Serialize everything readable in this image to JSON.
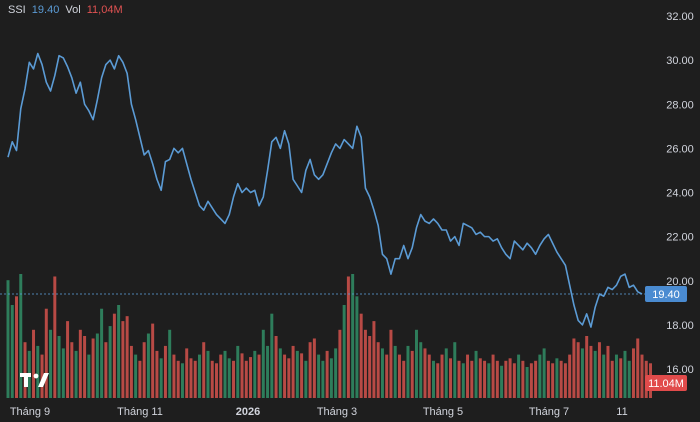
{
  "legend": {
    "symbol": "SSI",
    "price": "19.40",
    "volume_label": "Vol",
    "volume": "11,04M"
  },
  "badges": {
    "price": "19.40",
    "volume": "11.04M"
  },
  "colors": {
    "background": "#1e1e1e",
    "line": "#5b9bd5",
    "vol_up": "#2e7d5b",
    "vol_down": "#b84a45",
    "badge_price": "#4a8bd1",
    "badge_vol": "#e14b4b",
    "text": "#d1d4dc"
  },
  "logo_icon": "tradingview-logo-icon",
  "chart_data": {
    "type": "line",
    "title": "",
    "xlabel": "",
    "ylabel": "",
    "y_ticks": [
      "32.00",
      "30.00",
      "28.00",
      "26.00",
      "24.00",
      "22.00",
      "20.00",
      "18.00",
      "16.00"
    ],
    "ylim": [
      14.9,
      32.5
    ],
    "x_ticks": [
      "Tháng 9",
      "Tháng 11",
      "2026",
      "Tháng 3",
      "Tháng 5",
      "Tháng 7",
      "11"
    ],
    "x_ticks_bold": [
      false,
      false,
      true,
      false,
      false,
      false,
      false
    ],
    "grid": false,
    "current_price": 19.4,
    "series": [
      {
        "values": [
          25.6,
          26.3,
          25.9,
          27.8,
          28.7,
          29.9,
          29.6,
          30.3,
          29.8,
          29.0,
          28.6,
          29.3,
          30.2,
          30.1,
          29.7,
          29.2,
          28.5,
          29.0,
          28.0,
          27.7,
          27.3,
          28.2,
          29.2,
          29.8,
          30.0,
          29.6,
          30.2,
          29.9,
          29.4,
          28.0,
          27.3,
          26.5,
          25.7,
          25.9,
          25.3,
          24.6,
          24.1,
          25.4,
          25.5,
          26.0,
          25.8,
          26.0,
          25.3,
          24.6,
          24.0,
          23.4,
          23.2,
          23.6,
          23.3,
          23.0,
          22.8,
          22.6,
          23.0,
          23.8,
          24.4,
          24.0,
          24.2,
          24.0,
          24.1,
          23.4,
          23.8,
          25.0,
          26.3,
          26.5,
          26.0,
          26.8,
          26.2,
          24.6,
          24.3,
          24.0,
          25.0,
          25.5,
          24.8,
          24.6,
          24.8,
          25.3,
          25.8,
          26.2,
          26.0,
          26.4,
          26.2,
          26.0,
          27.0,
          26.5,
          24.2,
          23.8,
          23.2,
          22.5,
          21.2,
          21.0,
          20.3,
          21.0,
          21.0,
          21.6,
          21.0,
          21.5,
          22.4,
          23.0,
          22.7,
          22.6,
          22.8,
          22.6,
          22.3,
          22.3,
          21.8,
          22.0,
          21.6,
          22.6,
          22.5,
          22.4,
          22.1,
          22.2,
          22.0,
          22.0,
          21.8,
          21.9,
          21.5,
          21.2,
          21.0,
          21.8,
          21.6,
          21.4,
          21.7,
          21.5,
          21.2,
          21.6,
          21.9,
          22.1,
          21.7,
          21.3,
          21.0,
          20.7,
          19.8,
          18.9,
          18.2,
          18.0,
          18.5,
          17.9,
          18.8,
          19.4,
          19.3,
          19.7,
          19.6,
          19.8,
          20.2,
          20.3,
          19.7,
          19.8,
          19.5,
          19.4
        ],
        "volume_up": [
          true,
          true,
          false,
          true,
          false,
          true,
          false,
          true,
          false,
          false,
          true,
          false,
          true,
          true,
          false,
          false,
          true,
          false,
          false,
          true,
          false,
          true,
          true,
          false,
          true,
          false,
          true,
          false,
          false,
          false,
          true,
          false,
          false,
          true,
          false,
          false,
          true,
          false,
          true,
          false,
          false,
          true,
          false,
          false,
          false,
          true,
          false,
          true,
          false,
          false,
          false,
          true,
          true,
          false,
          true,
          false,
          false,
          false,
          true,
          false,
          true,
          true,
          true,
          false,
          true,
          false,
          false,
          false,
          true,
          false,
          true,
          false,
          false,
          true,
          true,
          false,
          true,
          true,
          false,
          true,
          false,
          true,
          true,
          false,
          false,
          false,
          false,
          false,
          true,
          false,
          false,
          true,
          false,
          false,
          true,
          false,
          true,
          true,
          false,
          false,
          true,
          false,
          false,
          true,
          false,
          true,
          false,
          true,
          false,
          false,
          true,
          false,
          false,
          true,
          false,
          false,
          true,
          false,
          false,
          false,
          true,
          false,
          true,
          false,
          false,
          true,
          true,
          false,
          false,
          true,
          false,
          false,
          false,
          false,
          false,
          true,
          false,
          false,
          true,
          false,
          true,
          false,
          false,
          true,
          false,
          true,
          true,
          false,
          false,
          false,
          false,
          false
        ],
        "volume_levels": [
          0.95,
          0.75,
          0.82,
          1.0,
          0.45,
          0.38,
          0.55,
          0.42,
          0.35,
          0.72,
          0.55,
          0.98,
          0.5,
          0.4,
          0.62,
          0.45,
          0.38,
          0.55,
          0.5,
          0.35,
          0.48,
          0.52,
          0.72,
          0.45,
          0.58,
          0.68,
          0.75,
          0.62,
          0.66,
          0.42,
          0.35,
          0.3,
          0.45,
          0.52,
          0.6,
          0.38,
          0.32,
          0.42,
          0.55,
          0.35,
          0.3,
          0.28,
          0.4,
          0.32,
          0.3,
          0.35,
          0.45,
          0.38,
          0.3,
          0.28,
          0.35,
          0.38,
          0.32,
          0.3,
          0.42,
          0.36,
          0.3,
          0.33,
          0.38,
          0.35,
          0.55,
          0.42,
          0.68,
          0.5,
          0.4,
          0.35,
          0.32,
          0.42,
          0.38,
          0.36,
          0.3,
          0.45,
          0.48,
          0.35,
          0.3,
          0.38,
          0.32,
          0.4,
          0.55,
          0.75,
          0.98,
          1.0,
          0.82,
          0.68,
          0.55,
          0.5,
          0.62,
          0.45,
          0.4,
          0.35,
          0.55,
          0.42,
          0.35,
          0.3,
          0.42,
          0.38,
          0.55,
          0.45,
          0.4,
          0.35,
          0.3,
          0.28,
          0.35,
          0.4,
          0.32,
          0.45,
          0.3,
          0.28,
          0.35,
          0.3,
          0.38,
          0.32,
          0.3,
          0.28,
          0.35,
          0.3,
          0.26,
          0.3,
          0.32,
          0.28,
          0.35,
          0.3,
          0.25,
          0.28,
          0.3,
          0.35,
          0.4,
          0.3,
          0.28,
          0.32,
          0.3,
          0.28,
          0.35,
          0.48,
          0.45,
          0.4,
          0.5,
          0.42,
          0.38,
          0.45,
          0.35,
          0.42,
          0.3,
          0.35,
          0.32,
          0.38,
          0.3,
          0.4,
          0.48,
          0.35,
          0.3,
          0.28
        ]
      }
    ]
  }
}
